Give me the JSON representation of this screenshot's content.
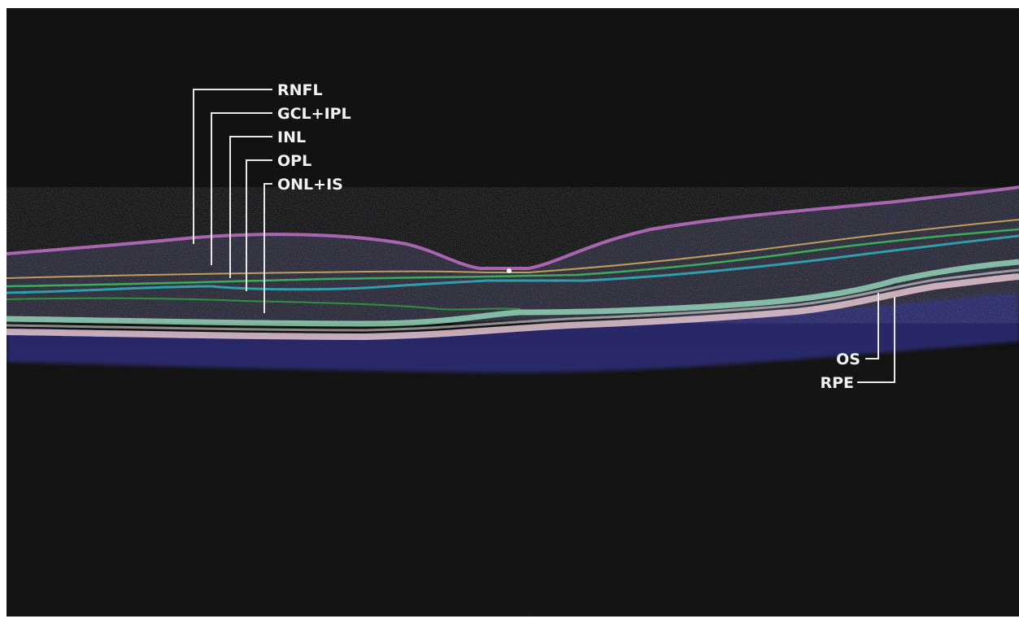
{
  "labels_top": [
    "RNFL",
    "GCL+IPL",
    "INL",
    "OPL",
    "ONL+IS"
  ],
  "labels_bottom": [
    "OS",
    "RPE"
  ],
  "colors": {
    "background": "#111111",
    "rnfl_boundary": "#c070c8",
    "gcl_boundary": "#d8b060",
    "inl_boundary": "#40c060",
    "opl_boundary": "#30b0c0",
    "onl_boundary": "#30a040",
    "os_band": "#a0e8c8",
    "rpe_band": "#f0d0d8",
    "choroid": "#3a3ab0",
    "label_text": "#f2f2f2"
  }
}
